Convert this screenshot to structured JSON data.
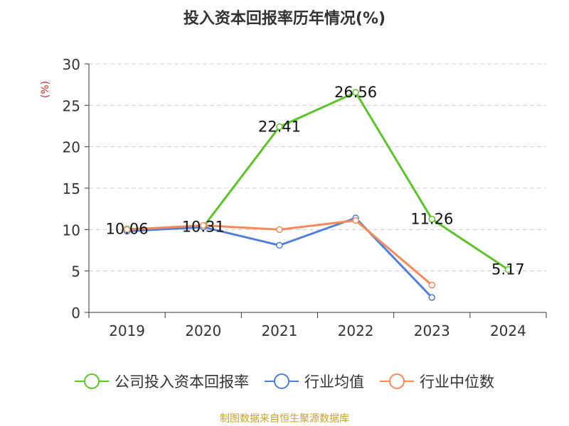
{
  "chart_data": {
    "type": "line",
    "title": "投入资本回报率历年情况(%)",
    "ylabel": "(%)",
    "xlabel": "",
    "categories": [
      "2019",
      "2020",
      "2021",
      "2022",
      "2023",
      "2024"
    ],
    "ylim": [
      0,
      30
    ],
    "yticks": [
      "0",
      "5",
      "10",
      "15",
      "20",
      "25",
      "30"
    ],
    "grid": true,
    "legend_position": "bottom",
    "series": [
      {
        "name": "公司投入资本回报率",
        "color": "#5cc428",
        "values": [
          10.06,
          10.31,
          22.41,
          26.56,
          11.26,
          5.17
        ],
        "labels": [
          "10.06",
          "10.31",
          "22.41",
          "26.56",
          "11.26",
          "5.17"
        ]
      },
      {
        "name": "行业均值",
        "color": "#4f7fd6",
        "values": [
          9.8,
          10.3,
          8.1,
          11.4,
          1.8,
          null
        ],
        "labels": null
      },
      {
        "name": "行业中位数",
        "color": "#f48a5c",
        "values": [
          10.0,
          10.5,
          10.0,
          11.1,
          3.3,
          null
        ],
        "labels": null
      }
    ],
    "source": "制图数据来自恒生聚源数据库"
  }
}
